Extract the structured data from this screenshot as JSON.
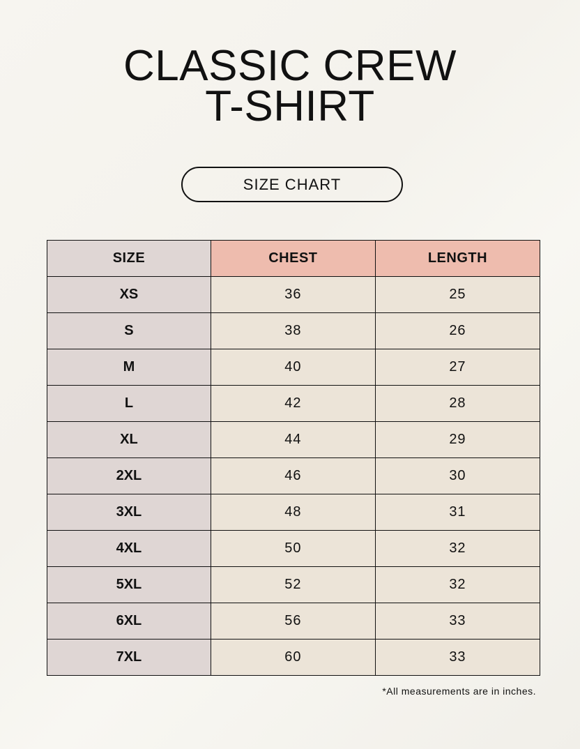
{
  "title_line1": "CLASSIC CREW",
  "title_line2": "T-SHIRT",
  "badge": "SIZE CHART",
  "colors": {
    "size_column": "#dfd6d4",
    "measure_header": "#eebcae",
    "value_cells": "#ece4d8"
  },
  "table": {
    "headers": [
      "SIZE",
      "CHEST",
      "LENGTH"
    ],
    "rows": [
      [
        "XS",
        "36",
        "25"
      ],
      [
        "S",
        "38",
        "26"
      ],
      [
        "M",
        "40",
        "27"
      ],
      [
        "L",
        "42",
        "28"
      ],
      [
        "XL",
        "44",
        "29"
      ],
      [
        "2XL",
        "46",
        "30"
      ],
      [
        "3XL",
        "48",
        "31"
      ],
      [
        "4XL",
        "50",
        "32"
      ],
      [
        "5XL",
        "52",
        "32"
      ],
      [
        "6XL",
        "56",
        "33"
      ],
      [
        "7XL",
        "60",
        "33"
      ]
    ]
  },
  "footnote": "*All measurements are in inches."
}
